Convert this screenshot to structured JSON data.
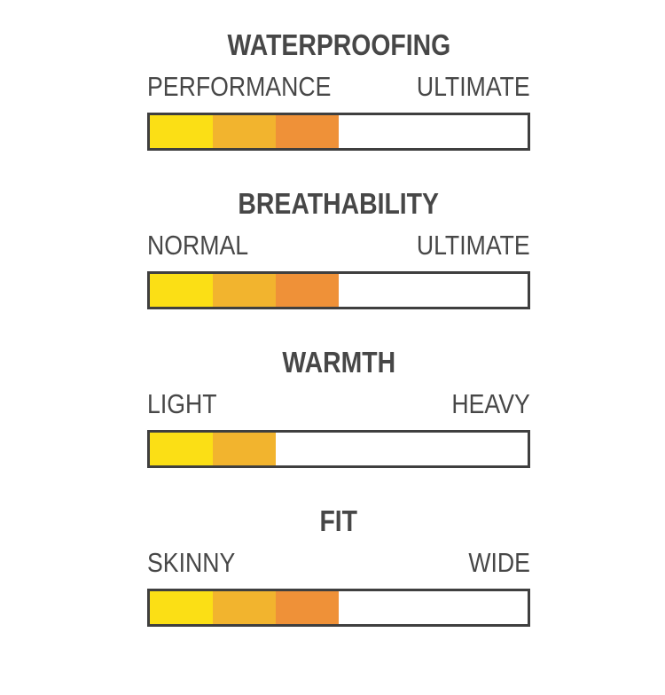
{
  "colors": {
    "text": "#474747",
    "bar_border": "#3f3f3f",
    "bar_background": "#ffffff",
    "page_background": "#ffffff"
  },
  "chart_data": {
    "type": "bar",
    "orientation": "horizontal",
    "scale_segments_total": 6,
    "segment_colors": [
      "#fbdf15",
      "#f2b42e",
      "#ef9138"
    ],
    "bars": [
      {
        "title": "WATERPROOFING",
        "left_label": "PERFORMANCE",
        "right_label": "ULTIMATE",
        "filled_segments": 3,
        "fill_fraction": 0.5
      },
      {
        "title": "BREATHABILITY",
        "left_label": "NORMAL",
        "right_label": "ULTIMATE",
        "filled_segments": 3,
        "fill_fraction": 0.5
      },
      {
        "title": "WARMTH",
        "left_label": "LIGHT",
        "right_label": "HEAVY",
        "filled_segments": 2,
        "fill_fraction": 0.333
      },
      {
        "title": "FIT",
        "left_label": "SKINNY",
        "right_label": "WIDE",
        "filled_segments": 3,
        "fill_fraction": 0.5
      }
    ]
  }
}
